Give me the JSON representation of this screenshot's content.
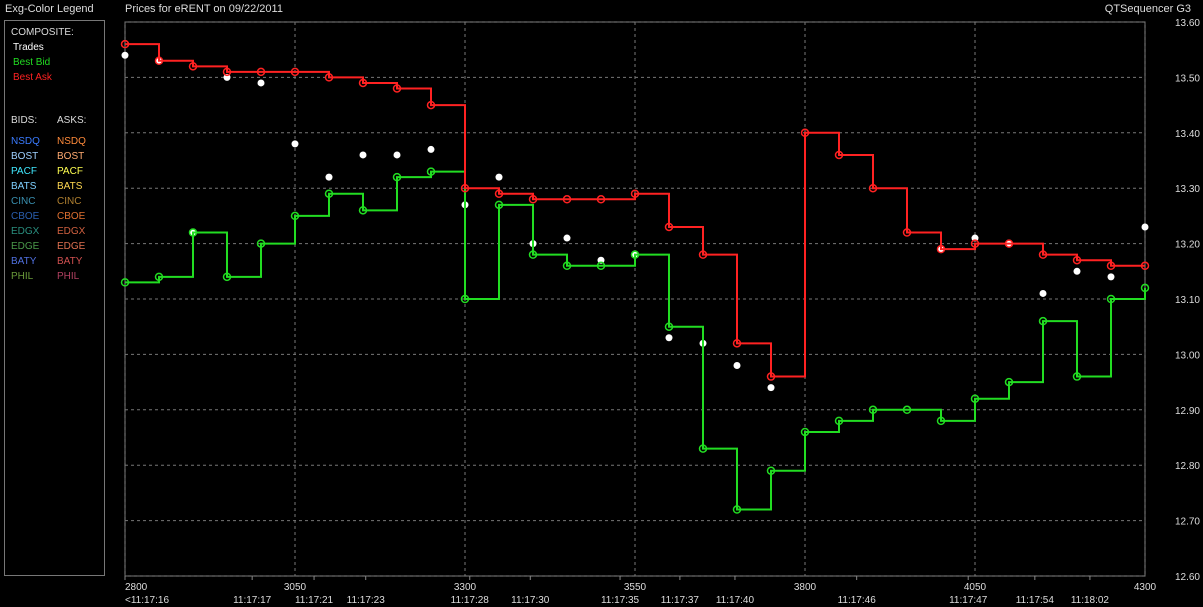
{
  "header": {
    "legend_title": "Exg-Color Legend",
    "title": "Prices for  eRENT  on  09/22/2011",
    "app": "QTSequencer G3"
  },
  "legend_panel": {
    "composite_label": "COMPOSITE:",
    "bids_label": "BIDS:",
    "asks_label": "ASKS:",
    "bids": [
      {
        "name": "NSDQ",
        "color": "#3a7bff"
      },
      {
        "name": "BOST",
        "color": "#9fd0ff"
      },
      {
        "name": "PACF",
        "color": "#40e8ff"
      },
      {
        "name": "BATS",
        "color": "#7fd0ff"
      },
      {
        "name": "CINC",
        "color": "#3a90b0"
      },
      {
        "name": "CBOE",
        "color": "#2a5fb0"
      },
      {
        "name": "EDGX",
        "color": "#2a8f7f"
      },
      {
        "name": "EDGE",
        "color": "#4a9a4a"
      },
      {
        "name": "BATY",
        "color": "#5070e0"
      },
      {
        "name": "PHIL",
        "color": "#6a9a3a"
      }
    ],
    "asks": [
      {
        "name": "NSDQ",
        "color": "#ff8a3a"
      },
      {
        "name": "BOST",
        "color": "#ffaa70"
      },
      {
        "name": "PACF",
        "color": "#ffff50"
      },
      {
        "name": "BATS",
        "color": "#ffd850"
      },
      {
        "name": "CINC",
        "color": "#b08030"
      },
      {
        "name": "CBOE",
        "color": "#e07030"
      },
      {
        "name": "EDGX",
        "color": "#d06040"
      },
      {
        "name": "EDGE",
        "color": "#e07050"
      },
      {
        "name": "BATY",
        "color": "#d05050"
      },
      {
        "name": "PHIL",
        "color": "#b04060"
      }
    ]
  },
  "chart_data": {
    "type": "line",
    "grid": true,
    "x": [
      2800,
      2850,
      2900,
      2950,
      3000,
      3050,
      3100,
      3150,
      3200,
      3250,
      3300,
      3350,
      3400,
      3450,
      3500,
      3550,
      3600,
      3650,
      3700,
      3750,
      3800,
      3850,
      3900,
      3950,
      4000,
      4050,
      4100,
      4150,
      4200,
      4250,
      4300
    ],
    "xlim": [
      2800,
      4300
    ],
    "xticks": [
      2800,
      3050,
      3300,
      3550,
      3800,
      4050,
      4300
    ],
    "time_ticks": [
      {
        "value": 2800,
        "label": "<11:17:16"
      },
      {
        "value": 2987,
        "label": "11:17:17"
      },
      {
        "value": 3078,
        "label": "11:17:21"
      },
      {
        "value": 3154,
        "label": "11:17:23"
      },
      {
        "value": 3307,
        "label": "11:17:28"
      },
      {
        "value": 3396,
        "label": "11:17:30"
      },
      {
        "value": 3528,
        "label": "11:17:35"
      },
      {
        "value": 3616,
        "label": "11:17:37"
      },
      {
        "value": 3697,
        "label": "11:17:40"
      },
      {
        "value": 3876,
        "label": "11:17:46"
      },
      {
        "value": 4040,
        "label": "11:17:47"
      },
      {
        "value": 4138,
        "label": "11:17:54"
      },
      {
        "value": 4219,
        "label": "11:18:02"
      }
    ],
    "ylim": [
      12.6,
      13.6
    ],
    "yticks": [
      {
        "value": 12.6,
        "label": "12.60"
      },
      {
        "value": 12.7,
        "label": "12.70"
      },
      {
        "value": 12.8,
        "label": "12.80"
      },
      {
        "value": 12.9,
        "label": "12.90"
      },
      {
        "value": 13.0,
        "label": "13.00"
      },
      {
        "value": 13.1,
        "label": "13.10"
      },
      {
        "value": 13.2,
        "label": "13.20"
      },
      {
        "value": 13.3,
        "label": "13.30"
      },
      {
        "value": 13.4,
        "label": "13.40"
      },
      {
        "value": 13.5,
        "label": "13.50"
      },
      {
        "value": 13.6,
        "label": "13.60"
      }
    ],
    "series": [
      {
        "name": "Trades",
        "color": "#ffffff",
        "style": "dots",
        "values": [
          13.54,
          13.53,
          13.22,
          13.5,
          13.49,
          13.38,
          13.32,
          13.36,
          13.36,
          13.37,
          13.27,
          13.32,
          13.2,
          13.21,
          13.17,
          13.18,
          13.03,
          13.02,
          12.98,
          12.94,
          null,
          null,
          null,
          null,
          13.19,
          13.21,
          13.2,
          13.11,
          13.15,
          13.14,
          13.23
        ]
      },
      {
        "name": "Best Bid",
        "color": "#22dd22",
        "style": "step-circles",
        "values": [
          13.13,
          13.14,
          13.22,
          13.14,
          13.2,
          13.25,
          13.29,
          13.26,
          13.32,
          13.33,
          13.1,
          13.27,
          13.18,
          13.16,
          13.16,
          13.18,
          13.05,
          12.83,
          12.72,
          12.79,
          12.86,
          12.88,
          12.9,
          12.9,
          12.88,
          12.92,
          12.95,
          13.06,
          12.96,
          13.1,
          13.12
        ]
      },
      {
        "name": "Best Ask",
        "color": "#ff2222",
        "style": "step-circles",
        "values": [
          13.56,
          13.53,
          13.52,
          13.51,
          13.51,
          13.51,
          13.5,
          13.49,
          13.48,
          13.45,
          13.3,
          13.29,
          13.28,
          13.28,
          13.28,
          13.29,
          13.23,
          13.18,
          13.02,
          12.96,
          13.4,
          13.36,
          13.3,
          13.22,
          13.19,
          13.2,
          13.2,
          13.18,
          13.17,
          13.16,
          13.16
        ]
      }
    ]
  }
}
